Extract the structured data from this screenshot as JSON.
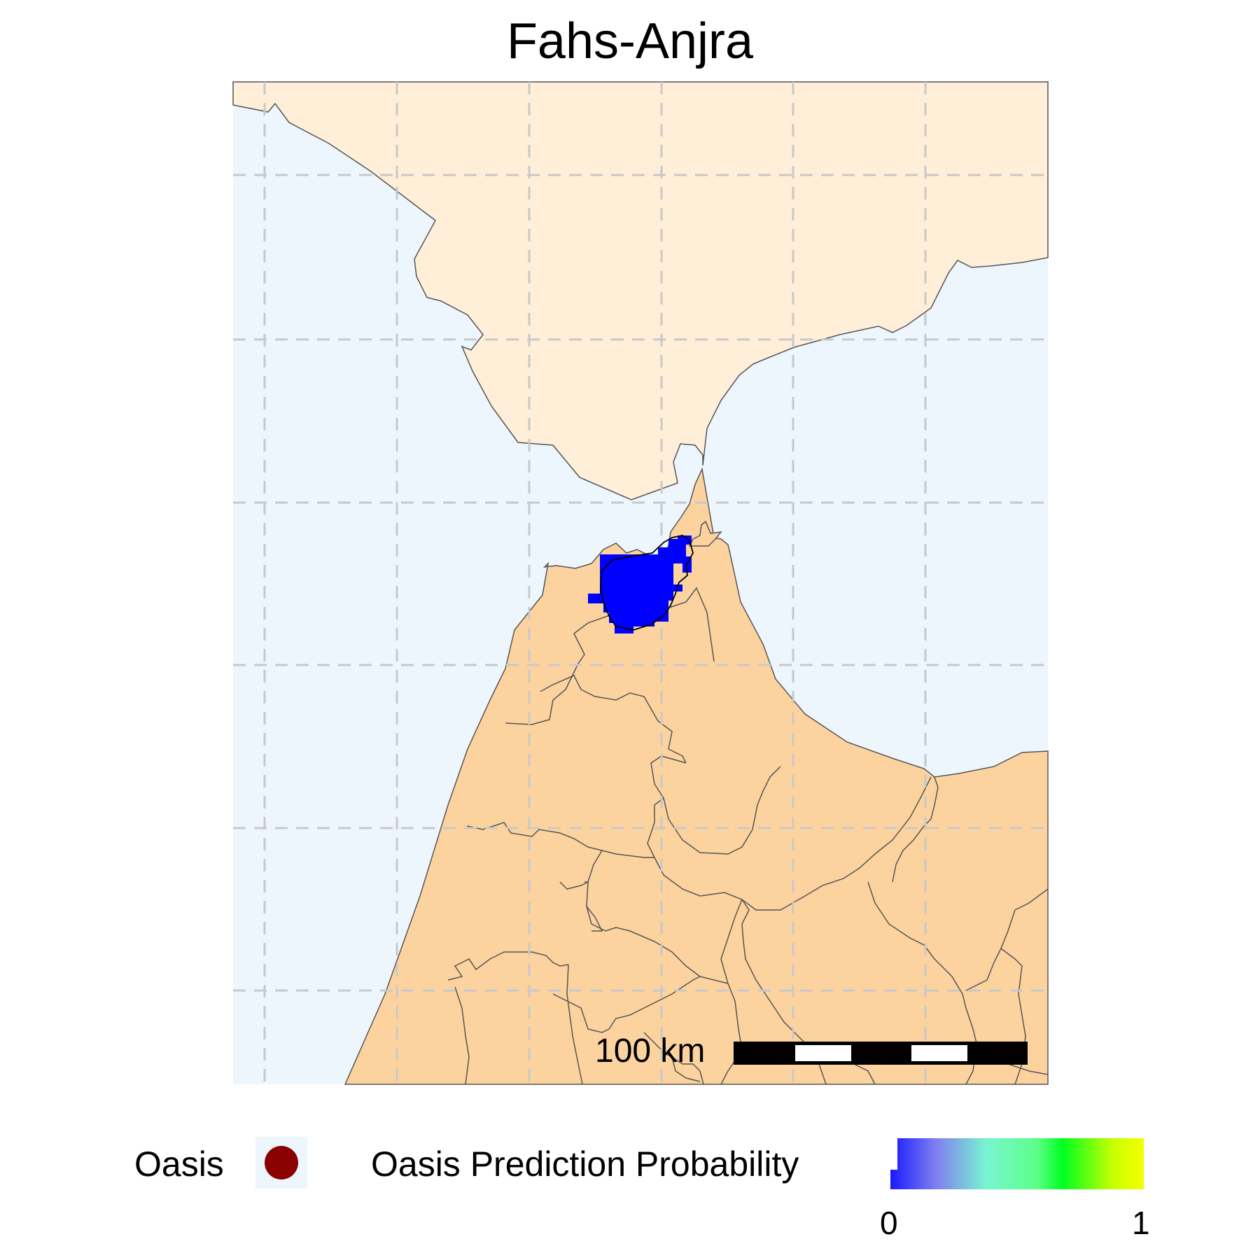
{
  "title": "Fahs-Anjra",
  "colors": {
    "sea": "#eef6fd",
    "land_north": "#ffefd9",
    "land_south": "#fcd39f",
    "region_highlight": "#0000ff",
    "oasis_point": "#8b0000",
    "grid": "#c8c8c8",
    "border": "#555555"
  },
  "map": {
    "grid_style": "dashed",
    "highlighted_region": "Fahs-Anjra",
    "scale_bar": {
      "label": "100 km",
      "segments": 5
    }
  },
  "legend": {
    "oasis_label": "Oasis",
    "probability_title": "Oasis Prediction Probability",
    "probability_min": "0",
    "probability_max": "1"
  }
}
